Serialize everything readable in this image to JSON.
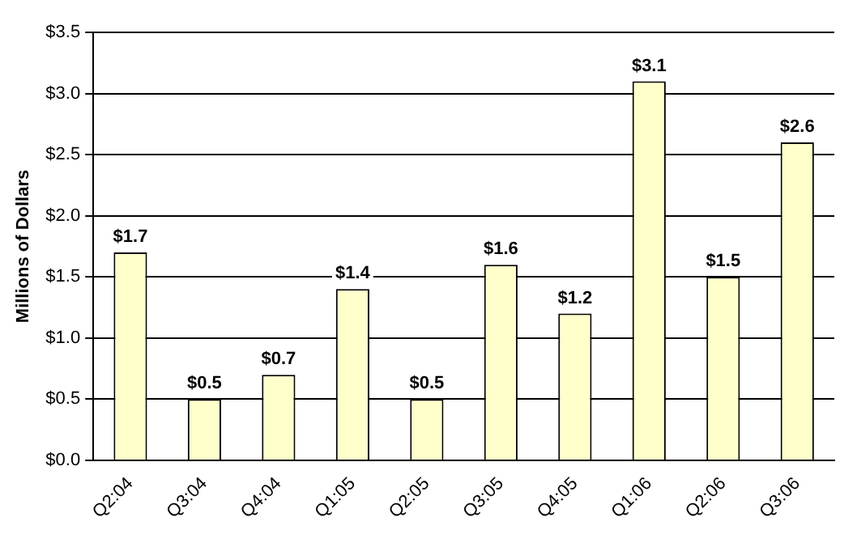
{
  "chart_data": {
    "type": "bar",
    "ylabel": "Millions of Dollars",
    "categories": [
      "Q2:04",
      "Q3:04",
      "Q4:04",
      "Q1:05",
      "Q2:05",
      "Q3:05",
      "Q4:05",
      "Q1:06",
      "Q2:06",
      "Q3:06"
    ],
    "values": [
      1.7,
      0.5,
      0.7,
      1.4,
      0.5,
      1.6,
      1.2,
      3.1,
      1.5,
      2.6
    ],
    "value_labels": [
      "$1.7",
      "$0.5",
      "$0.7",
      "$1.4",
      "$0.5",
      "$1.6",
      "$1.2",
      "$3.1",
      "$1.5",
      "$2.6"
    ],
    "color": "#ffffcc",
    "ylim": [
      0,
      3.5
    ],
    "yticks": [
      {
        "value": 0,
        "label": "$0.0"
      },
      {
        "value": 0.5,
        "label": "$0.5"
      },
      {
        "value": 1,
        "label": "$1.0"
      },
      {
        "value": 1.5,
        "label": "$1.5"
      },
      {
        "value": 2,
        "label": "$2.0"
      },
      {
        "value": 2.5,
        "label": "$2.5"
      },
      {
        "value": 3,
        "label": "$3.0"
      },
      {
        "value": 3.5,
        "label": "$3.5"
      }
    ],
    "grid": "y",
    "legend": false
  }
}
